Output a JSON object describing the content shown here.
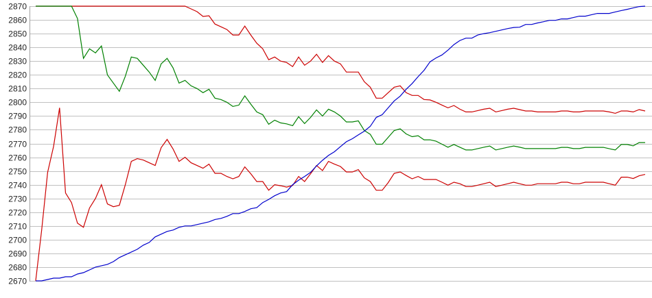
{
  "chart_data": {
    "type": "line",
    "title": "",
    "xlabel": "",
    "ylabel": "",
    "ylim": [
      2670,
      2870
    ],
    "yticks": [
      2670,
      2680,
      2690,
      2700,
      2710,
      2720,
      2730,
      2740,
      2750,
      2760,
      2770,
      2780,
      2790,
      2800,
      2810,
      2820,
      2830,
      2840,
      2850,
      2860,
      2870
    ],
    "grid": "horizontal",
    "xlim": [
      0,
      102
    ],
    "series": [
      {
        "color": "#cc0000",
        "values": [
          2870,
          2870,
          2870,
          2870,
          2870,
          2870,
          2870,
          2870,
          2870,
          2870,
          2870,
          2870,
          2870,
          2870,
          2870,
          2870,
          2870,
          2870,
          2870,
          2870,
          2870,
          2870,
          2870,
          2870,
          2870,
          2870,
          2868,
          2866,
          2862.5,
          2863,
          2857,
          2855,
          2853,
          2849,
          2849,
          2855.5,
          2849,
          2843,
          2839,
          2831,
          2833,
          2830,
          2829,
          2826,
          2833,
          2827,
          2830,
          2835,
          2829,
          2834,
          2830,
          2828,
          2822,
          2822,
          2822,
          2815,
          2811,
          2803,
          2803,
          2807,
          2811,
          2812,
          2807,
          2805,
          2805,
          2802,
          2801.7,
          2800,
          2798,
          2796,
          2797.7,
          2795,
          2793,
          2793,
          2794,
          2795,
          2795.7,
          2793,
          2794,
          2795,
          2795.7,
          2794.7,
          2793.7,
          2793.7,
          2793,
          2793,
          2793,
          2793,
          2793.7,
          2793.7,
          2793,
          2793,
          2793.7,
          2793.7,
          2793.7,
          2793.7,
          2793,
          2792,
          2793.7,
          2793.7,
          2793,
          2794.7,
          2793.7
        ]
      },
      {
        "color": "#008000",
        "values": [
          2870,
          2870,
          2870,
          2870,
          2870,
          2870,
          2870,
          2861,
          2832,
          2839,
          2836,
          2841,
          2820,
          2814,
          2808,
          2819,
          2833,
          2832,
          2827,
          2822,
          2816,
          2828,
          2832,
          2825,
          2814,
          2816,
          2812,
          2810,
          2807,
          2809.5,
          2803,
          2802,
          2800,
          2797,
          2798,
          2804.7,
          2798.7,
          2793,
          2791,
          2784,
          2787,
          2785,
          2784.3,
          2783,
          2789.5,
          2784.5,
          2789,
          2794.5,
          2790,
          2795,
          2793,
          2790,
          2785.7,
          2785.7,
          2786.5,
          2779.5,
          2776.7,
          2769.5,
          2769.5,
          2774.5,
          2779.5,
          2780.7,
          2777,
          2775,
          2775.7,
          2772.7,
          2772.7,
          2771.7,
          2769.5,
          2767.3,
          2769.3,
          2767.3,
          2765.3,
          2765.3,
          2766.3,
          2767.3,
          2768.2,
          2765.3,
          2766.3,
          2767.3,
          2768.2,
          2767.3,
          2766.3,
          2766.3,
          2766.3,
          2766.3,
          2766.3,
          2766.3,
          2767.2,
          2767.2,
          2766.3,
          2766.3,
          2767.2,
          2767.2,
          2767.2,
          2767.2,
          2766.2,
          2765.3,
          2769.3,
          2769.3,
          2768.3,
          2770.7,
          2770.7
        ]
      },
      {
        "color": "#cc0000",
        "values": [
          2670,
          2707,
          2749,
          2768,
          2796,
          2734,
          2727,
          2712,
          2709,
          2723,
          2730,
          2740,
          2726,
          2724,
          2725,
          2740,
          2757,
          2759,
          2758,
          2756,
          2754,
          2767,
          2773,
          2766,
          2757,
          2760,
          2756,
          2754,
          2752,
          2755,
          2748.3,
          2748.3,
          2746,
          2744.3,
          2746,
          2753,
          2748,
          2742.3,
          2742.3,
          2736,
          2740,
          2739.3,
          2738.3,
          2739.5,
          2746,
          2742.3,
          2748,
          2754,
          2750.3,
          2757,
          2755,
          2753.3,
          2749.3,
          2749.3,
          2751,
          2745,
          2742.3,
          2736,
          2736,
          2741.5,
          2748.3,
          2749.3,
          2746.7,
          2744.3,
          2746,
          2743.8,
          2743.8,
          2743.8,
          2741.8,
          2739.7,
          2741.8,
          2740.7,
          2738.7,
          2738.7,
          2739.7,
          2740.7,
          2741.8,
          2738.7,
          2739.7,
          2740.7,
          2741.8,
          2740.7,
          2739.7,
          2739.7,
          2740.7,
          2740.7,
          2740.7,
          2740.7,
          2741.8,
          2741.8,
          2740.7,
          2740.7,
          2741.8,
          2741.8,
          2741.8,
          2741.8,
          2740.7,
          2739.7,
          2745.5,
          2745.5,
          2744.5,
          2746.5,
          2747.5
        ]
      },
      {
        "color": "#0000cc",
        "values": [
          2670,
          2670,
          2671,
          2672,
          2672,
          2673,
          2673,
          2675,
          2676,
          2678,
          2680,
          2681,
          2682,
          2684,
          2687,
          2689,
          2691,
          2693,
          2696,
          2698,
          2702,
          2704,
          2706,
          2707,
          2709,
          2710,
          2710,
          2711,
          2712,
          2713,
          2714.7,
          2715.5,
          2717,
          2719,
          2719,
          2720.5,
          2722.5,
          2723.3,
          2727,
          2729.3,
          2732,
          2734,
          2735,
          2740,
          2743.3,
          2746,
          2749,
          2753.7,
          2757.8,
          2761.3,
          2764,
          2767.7,
          2771.3,
          2773.5,
          2776.3,
          2779,
          2782.5,
          2789,
          2791,
          2796,
          2801,
          2804.5,
          2809.5,
          2813.7,
          2818.7,
          2823.3,
          2829.5,
          2832.3,
          2834.5,
          2838,
          2842,
          2845,
          2846.7,
          2846.7,
          2849,
          2850,
          2850.7,
          2851.7,
          2852.7,
          2853.7,
          2854.5,
          2854.7,
          2856.7,
          2856.7,
          2857.8,
          2858.7,
          2859.7,
          2859.7,
          2860.7,
          2860.7,
          2861.7,
          2862.7,
          2862.7,
          2863.7,
          2864.7,
          2864.7,
          2864.7,
          2865.8,
          2866.8,
          2867.7,
          2868.7,
          2869.7,
          2870
        ]
      }
    ],
    "colors": {
      "grid": "#c0c0c0",
      "axis": "#a0a0a0"
    }
  }
}
